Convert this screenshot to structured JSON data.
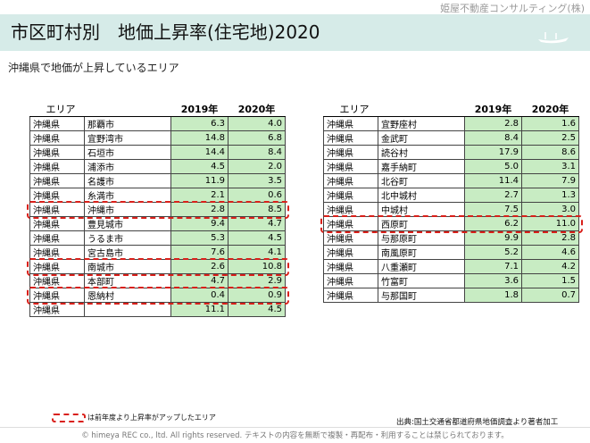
{
  "header": {
    "company": "姫屋不動産コンサルティング(株)",
    "title": "市区町村別　地価上昇率(住宅地)2020",
    "subtitle": "沖縄県で地価が上昇しているエリア"
  },
  "table_headers": {
    "area": "エリア",
    "y2019": "2019年",
    "y2020": "2020年"
  },
  "left_table": [
    {
      "pref": "沖縄県",
      "city": "那覇市",
      "y2019": "6.3",
      "y2020": "4.0"
    },
    {
      "pref": "沖縄県",
      "city": "宜野湾市",
      "y2019": "14.8",
      "y2020": "6.8"
    },
    {
      "pref": "沖縄県",
      "city": "石垣市",
      "y2019": "14.4",
      "y2020": "8.4"
    },
    {
      "pref": "沖縄県",
      "city": "浦添市",
      "y2019": "4.5",
      "y2020": "2.0"
    },
    {
      "pref": "沖縄県",
      "city": "名護市",
      "y2019": "11.9",
      "y2020": "3.5"
    },
    {
      "pref": "沖縄県",
      "city": "糸満市",
      "y2019": "2.1",
      "y2020": "0.6"
    },
    {
      "pref": "沖縄県",
      "city": "沖縄市",
      "y2019": "2.8",
      "y2020": "8.5"
    },
    {
      "pref": "沖縄県",
      "city": "豊見城市",
      "y2019": "9.4",
      "y2020": "4.7"
    },
    {
      "pref": "沖縄県",
      "city": "うるま市",
      "y2019": "5.3",
      "y2020": "4.5"
    },
    {
      "pref": "沖縄県",
      "city": "宮古島市",
      "y2019": "7.6",
      "y2020": "4.1"
    },
    {
      "pref": "沖縄県",
      "city": "南城市",
      "y2019": "2.6",
      "y2020": "10.8"
    },
    {
      "pref": "沖縄県",
      "city": "本部町",
      "y2019": "4.7",
      "y2020": "2.9"
    },
    {
      "pref": "沖縄県",
      "city": "恩納村",
      "y2019": "0.4",
      "y2020": "0.9"
    },
    {
      "pref": "沖縄県",
      "city": "",
      "y2019": "11.1",
      "y2020": "4.5"
    }
  ],
  "right_table": [
    {
      "pref": "沖縄県",
      "city": "宜野座村",
      "y2019": "2.8",
      "y2020": "1.6"
    },
    {
      "pref": "沖縄県",
      "city": "金武町",
      "y2019": "8.4",
      "y2020": "2.5"
    },
    {
      "pref": "沖縄県",
      "city": "読谷村",
      "y2019": "17.9",
      "y2020": "8.6"
    },
    {
      "pref": "沖縄県",
      "city": "嘉手納町",
      "y2019": "5.0",
      "y2020": "3.1"
    },
    {
      "pref": "沖縄県",
      "city": "北谷町",
      "y2019": "11.4",
      "y2020": "7.9"
    },
    {
      "pref": "沖縄県",
      "city": "北中城村",
      "y2019": "2.7",
      "y2020": "1.3"
    },
    {
      "pref": "沖縄県",
      "city": "中城村",
      "y2019": "7.5",
      "y2020": "3.0"
    },
    {
      "pref": "沖縄県",
      "city": "西原町",
      "y2019": "6.2",
      "y2020": "11.0"
    },
    {
      "pref": "沖縄県",
      "city": "与那原町",
      "y2019": "9.9",
      "y2020": "2.8"
    },
    {
      "pref": "沖縄県",
      "city": "南風原町",
      "y2019": "5.2",
      "y2020": "4.6"
    },
    {
      "pref": "沖縄県",
      "city": "八重瀬町",
      "y2019": "7.1",
      "y2020": "4.2"
    },
    {
      "pref": "沖縄県",
      "city": "竹富町",
      "y2019": "3.6",
      "y2020": "1.5"
    },
    {
      "pref": "沖縄県",
      "city": "与那国町",
      "y2019": "1.8",
      "y2020": "0.7"
    }
  ],
  "highlighted_rows": {
    "left": [
      6,
      10,
      12
    ],
    "right": [
      7
    ]
  },
  "colors": {
    "highlight": "#d9201a",
    "cell_green": "#c8ecc3",
    "title_bar": "#d6ebe8"
  },
  "legend": "は前年度より上昇率がアップしたエリア",
  "source": "出典:国土交通省都道府県地価調査より著者加工",
  "copyright": "© himeya REC co., ltd. All rights reserved. テキストの内容を無断で複製・再配布・利用することは禁じられております。"
}
